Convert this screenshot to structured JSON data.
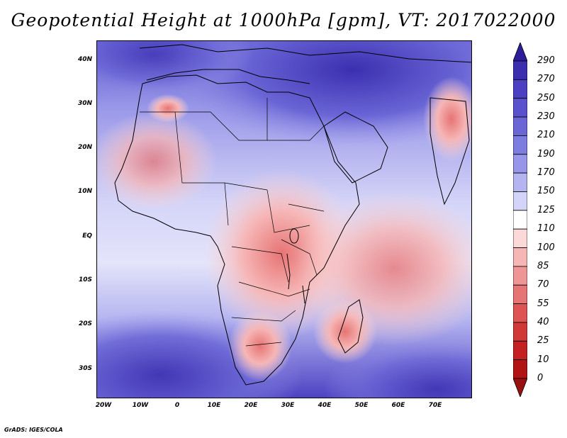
{
  "title": "Geopotential Height at 1000hPa [gpm], VT: 2017022000",
  "footer": "GrADS: IGES/COLA",
  "axes": {
    "lat_labels": [
      "40N",
      "30N",
      "20N",
      "10N",
      "EQ",
      "10S",
      "20S",
      "30S"
    ],
    "lon_labels": [
      "20W",
      "10W",
      "0",
      "10E",
      "20E",
      "30E",
      "40E",
      "50E",
      "60E",
      "70E"
    ]
  },
  "colorbar": {
    "labels": [
      "290",
      "270",
      "250",
      "230",
      "210",
      "190",
      "170",
      "150",
      "125",
      "110",
      "100",
      "85",
      "70",
      "55",
      "40",
      "25",
      "10",
      "0"
    ],
    "colors": [
      "#2d1d9a",
      "#3b2fb0",
      "#4b40c2",
      "#5a52cd",
      "#6a66d6",
      "#7d7cdf",
      "#9896e8",
      "#b4b4f0",
      "#d4d4f8",
      "#ffffff",
      "#fcd9d9",
      "#f6b6b6",
      "#ef9595",
      "#e77474",
      "#de5454",
      "#d13838",
      "#c42222",
      "#b01414",
      "#981010"
    ]
  },
  "map": {
    "region": "Africa",
    "lat_range": [
      -37,
      45
    ],
    "lon_range": [
      -22,
      80
    ]
  }
}
